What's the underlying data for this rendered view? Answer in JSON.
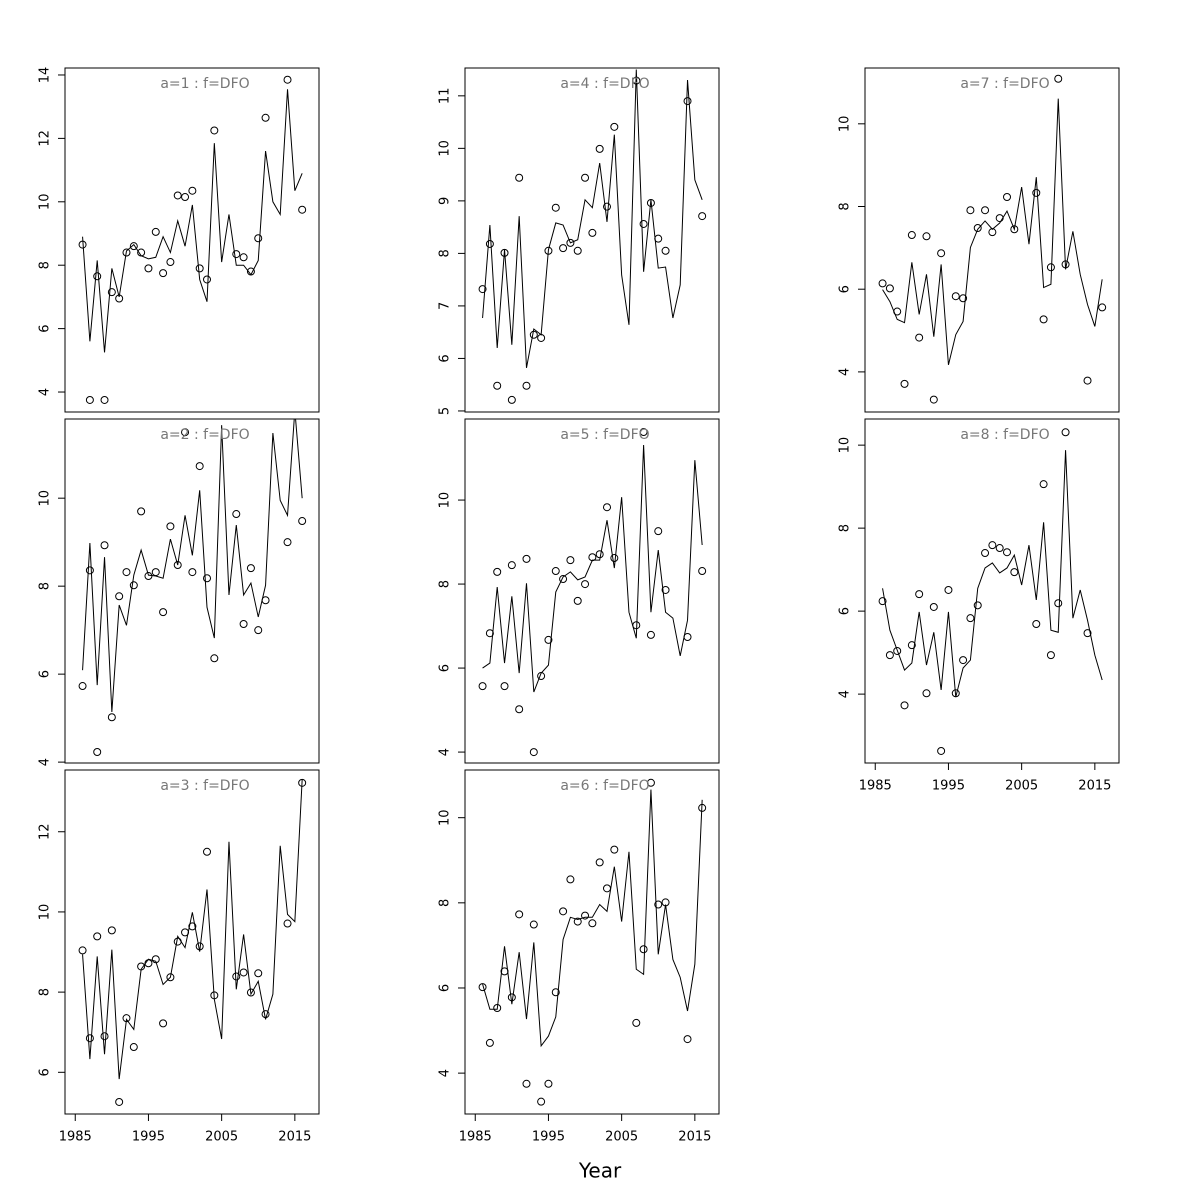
{
  "x_label": "Year",
  "chart_data": [
    {
      "type": "line",
      "title": "a=1 : f=DFO",
      "x": [
        1986,
        1987,
        1988,
        1989,
        1990,
        1991,
        1992,
        1993,
        1994,
        1995,
        1996,
        1997,
        1998,
        1999,
        2000,
        2001,
        2002,
        2003,
        2004,
        2005,
        2006,
        2007,
        2008,
        2009,
        2010,
        2011,
        2012,
        2013,
        2014,
        2015,
        2016
      ],
      "series": [
        {
          "style": "points",
          "color": "#000000",
          "values": [
            8.65,
            3.75,
            7.65,
            3.75,
            7.15,
            6.95,
            8.4,
            8.6,
            8.4,
            7.9,
            9.05,
            7.75,
            8.1,
            10.2,
            10.15,
            10.35,
            7.9,
            7.55,
            12.25,
            null,
            null,
            8.35,
            8.25,
            7.8,
            8.85,
            12.65,
            null,
            null,
            13.85,
            null,
            9.75
          ]
        },
        {
          "style": "line",
          "color": "#000000",
          "values": [
            8.9,
            5.6,
            8.15,
            5.25,
            7.9,
            7.0,
            8.45,
            8.65,
            8.3,
            8.2,
            8.25,
            8.9,
            8.4,
            9.4,
            8.6,
            9.9,
            7.55,
            6.85,
            11.85,
            8.1,
            9.6,
            8.0,
            8.0,
            7.7,
            8.15,
            11.6,
            10.0,
            9.6,
            13.55,
            10.35,
            10.9
          ]
        }
      ],
      "xlim": [
        1983.6,
        2018.3
      ],
      "ylim": [
        3.37,
        14.22
      ],
      "yticks": [
        4,
        6,
        8,
        10,
        12,
        14
      ]
    },
    {
      "type": "line",
      "title": "a=2 : f=DFO",
      "x": [
        1986,
        1987,
        1988,
        1989,
        1990,
        1991,
        1992,
        1993,
        1994,
        1995,
        1996,
        1997,
        1998,
        1999,
        2000,
        2001,
        2002,
        2003,
        2004,
        2005,
        2006,
        2007,
        2008,
        2009,
        2010,
        2011,
        2012,
        2013,
        2014,
        2015,
        2016
      ],
      "series": [
        {
          "style": "points",
          "color": "#000000",
          "values": [
            5.73,
            8.36,
            4.23,
            8.93,
            5.02,
            7.77,
            8.32,
            8.02,
            9.7,
            8.23,
            8.32,
            7.41,
            9.36,
            8.48,
            11.5,
            8.32,
            10.73,
            8.18,
            6.36,
            null,
            null,
            9.64,
            7.14,
            8.41,
            7.0,
            7.68,
            null,
            null,
            9.0,
            null,
            9.48
          ]
        },
        {
          "style": "line",
          "color": "#000000",
          "values": [
            6.09,
            8.98,
            5.75,
            8.66,
            5.14,
            7.57,
            7.11,
            8.25,
            8.82,
            8.25,
            8.23,
            8.18,
            9.07,
            8.48,
            9.61,
            8.7,
            10.18,
            7.52,
            6.82,
            11.66,
            7.8,
            9.39,
            7.8,
            8.07,
            7.3,
            8.02,
            11.48,
            9.95,
            9.61,
            12.0,
            10.0
          ]
        }
      ],
      "xlim": [
        1983.6,
        2018.3
      ],
      "ylim": [
        3.98,
        11.8
      ],
      "yticks": [
        4,
        6,
        8,
        10
      ]
    },
    {
      "type": "line",
      "title": "a=3 : f=DFO",
      "x": [
        1986,
        1987,
        1988,
        1989,
        1990,
        1991,
        1992,
        1993,
        1994,
        1995,
        1996,
        1997,
        1998,
        1999,
        2000,
        2001,
        2002,
        2003,
        2004,
        2005,
        2006,
        2007,
        2008,
        2009,
        2010,
        2011,
        2012,
        2013,
        2014,
        2015,
        2016
      ],
      "series": [
        {
          "style": "points",
          "color": "#000000",
          "values": [
            9.04,
            6.85,
            9.39,
            6.9,
            9.54,
            5.26,
            7.35,
            6.63,
            8.64,
            8.72,
            8.82,
            7.22,
            8.37,
            9.26,
            9.49,
            9.64,
            9.14,
            11.5,
            7.92,
            null,
            null,
            8.39,
            8.49,
            7.99,
            8.47,
            7.45,
            null,
            null,
            9.71,
            null,
            13.22
          ]
        },
        {
          "style": "line",
          "color": "#000000",
          "values": [
            8.94,
            6.33,
            8.89,
            6.45,
            9.06,
            5.83,
            7.32,
            7.07,
            8.57,
            8.82,
            8.77,
            8.19,
            8.37,
            9.39,
            9.11,
            9.99,
            9.01,
            10.56,
            7.82,
            6.83,
            11.75,
            8.07,
            9.44,
            7.95,
            8.27,
            7.32,
            7.95,
            11.65,
            9.94,
            9.76,
            13.3
          ]
        }
      ],
      "xlim": [
        1983.6,
        2018.3
      ],
      "ylim": [
        4.96,
        13.54
      ],
      "yticks": [
        6,
        8,
        10,
        12
      ],
      "xticks": [
        1985,
        1995,
        2005,
        2015
      ]
    },
    {
      "type": "line",
      "title": "a=4 : f=DFO",
      "x": [
        1986,
        1987,
        1988,
        1989,
        1990,
        1991,
        1992,
        1993,
        1994,
        1995,
        1996,
        1997,
        1998,
        1999,
        2000,
        2001,
        2002,
        2003,
        2004,
        2005,
        2006,
        2007,
        2008,
        2009,
        2010,
        2011,
        2012,
        2013,
        2014,
        2015,
        2016
      ],
      "series": [
        {
          "style": "points",
          "color": "#000000",
          "values": [
            7.32,
            8.18,
            5.48,
            8.01,
            5.21,
            9.44,
            5.48,
            6.45,
            6.39,
            8.05,
            8.87,
            8.1,
            8.2,
            8.05,
            9.44,
            8.39,
            9.99,
            8.89,
            10.41,
            null,
            null,
            11.29,
            8.56,
            8.96,
            8.28,
            8.05,
            null,
            null,
            10.9,
            null,
            8.71
          ]
        },
        {
          "style": "line",
          "color": "#000000",
          "values": [
            6.77,
            8.54,
            6.2,
            8.07,
            6.26,
            8.71,
            5.82,
            6.56,
            6.45,
            8.07,
            8.58,
            8.54,
            8.2,
            8.26,
            9.02,
            8.87,
            9.72,
            8.6,
            10.26,
            7.59,
            6.64,
            11.5,
            7.65,
            9.02,
            7.72,
            7.74,
            6.77,
            7.4,
            11.3,
            9.4,
            9.02
          ]
        }
      ],
      "xlim": [
        1983.6,
        2018.3
      ],
      "ylim": [
        4.98,
        11.53
      ],
      "yticks": [
        5,
        6,
        7,
        8,
        9,
        10,
        11
      ]
    },
    {
      "type": "line",
      "title": "a=5 : f=DFO",
      "x": [
        1986,
        1987,
        1988,
        1989,
        1990,
        1991,
        1992,
        1993,
        1994,
        1995,
        1996,
        1997,
        1998,
        1999,
        2000,
        2001,
        2002,
        2003,
        2004,
        2005,
        2006,
        2007,
        2008,
        2009,
        2010,
        2011,
        2012,
        2013,
        2014,
        2015,
        2016
      ],
      "series": [
        {
          "style": "points",
          "color": "#000000",
          "values": [
            5.57,
            6.83,
            8.29,
            5.57,
            8.45,
            5.02,
            8.6,
            4.0,
            5.81,
            6.67,
            8.31,
            8.12,
            8.57,
            7.6,
            8.0,
            8.64,
            8.71,
            9.83,
            8.62,
            null,
            null,
            7.02,
            11.62,
            6.79,
            9.26,
            7.86,
            null,
            null,
            6.74,
            null,
            8.31
          ]
        },
        {
          "style": "line",
          "color": "#000000",
          "values": [
            6.0,
            6.12,
            7.93,
            6.12,
            7.71,
            5.88,
            8.02,
            5.43,
            5.88,
            6.07,
            7.81,
            8.17,
            8.29,
            8.1,
            8.17,
            8.57,
            8.57,
            9.52,
            8.38,
            10.07,
            7.33,
            6.71,
            11.31,
            7.33,
            8.81,
            7.33,
            7.19,
            6.29,
            7.14,
            10.95,
            8.93
          ]
        }
      ],
      "xlim": [
        1983.6,
        2018.3
      ],
      "ylim": [
        3.74,
        11.93
      ],
      "yticks": [
        4,
        6,
        8,
        10
      ]
    },
    {
      "type": "line",
      "title": "a=6 : f=DFO",
      "x": [
        1986,
        1987,
        1988,
        1989,
        1990,
        1991,
        1992,
        1993,
        1994,
        1995,
        1996,
        1997,
        1998,
        1999,
        2000,
        2001,
        2002,
        2003,
        2004,
        2005,
        2006,
        2007,
        2008,
        2009,
        2010,
        2011,
        2012,
        2013,
        2014,
        2015,
        2016
      ],
      "series": [
        {
          "style": "points",
          "color": "#000000",
          "values": [
            6.02,
            4.71,
            5.53,
            6.39,
            5.78,
            7.73,
            3.75,
            7.49,
            3.33,
            3.75,
            5.9,
            7.8,
            8.55,
            7.56,
            7.7,
            7.52,
            8.95,
            8.34,
            9.25,
            null,
            null,
            5.18,
            6.91,
            10.82,
            7.96,
            8.01,
            null,
            null,
            4.8,
            null,
            10.23
          ]
        },
        {
          "style": "line",
          "color": "#000000",
          "values": [
            6.09,
            5.5,
            5.5,
            6.98,
            5.62,
            6.84,
            5.27,
            7.07,
            4.64,
            4.87,
            5.32,
            7.14,
            7.66,
            7.61,
            7.66,
            7.66,
            7.96,
            7.8,
            8.85,
            7.56,
            9.2,
            6.44,
            6.32,
            10.66,
            6.79,
            7.96,
            6.67,
            6.25,
            5.46,
            6.56,
            10.42
          ]
        }
      ],
      "xlim": [
        1983.6,
        2018.3
      ],
      "ylim": [
        3.04,
        11.12
      ],
      "yticks": [
        4,
        6,
        8,
        10
      ],
      "xticks": [
        1985,
        1995,
        2005,
        2015
      ]
    },
    {
      "type": "line",
      "title": "a=7 : f=DFO",
      "x": [
        1986,
        1987,
        1988,
        1989,
        1990,
        1991,
        1992,
        1993,
        1994,
        1995,
        1996,
        1997,
        1998,
        1999,
        2000,
        2001,
        2002,
        2003,
        2004,
        2005,
        2006,
        2007,
        2008,
        2009,
        2010,
        2011,
        2012,
        2013,
        2014,
        2015,
        2016
      ],
      "series": [
        {
          "style": "points",
          "color": "#000000",
          "values": [
            6.14,
            6.02,
            5.46,
            3.71,
            7.31,
            4.83,
            7.28,
            3.33,
            6.87,
            null,
            5.83,
            5.78,
            7.91,
            7.48,
            7.91,
            7.38,
            7.72,
            8.23,
            7.45,
            null,
            null,
            8.33,
            5.27,
            6.53,
            11.09,
            6.6,
            null,
            null,
            3.79,
            null,
            5.56
          ]
        },
        {
          "style": "line",
          "color": "#000000",
          "values": [
            5.99,
            5.7,
            5.27,
            5.19,
            6.65,
            5.39,
            6.36,
            4.85,
            6.6,
            4.17,
            4.9,
            5.22,
            7.01,
            7.45,
            7.65,
            7.45,
            7.6,
            7.89,
            7.45,
            8.47,
            7.09,
            8.71,
            6.04,
            6.12,
            10.61,
            6.48,
            7.4,
            6.36,
            5.63,
            5.1,
            6.24
          ]
        }
      ],
      "xlim": [
        1983.6,
        2018.3
      ],
      "ylim": [
        3.03,
        11.35
      ],
      "yticks": [
        4,
        6,
        8,
        10
      ]
    },
    {
      "type": "line",
      "title": "a=8 : f=DFO",
      "x": [
        1986,
        1987,
        1988,
        1989,
        1990,
        1991,
        1992,
        1993,
        1994,
        1995,
        1996,
        1997,
        1998,
        1999,
        2000,
        2001,
        2002,
        2003,
        2004,
        2005,
        2006,
        2007,
        2008,
        2009,
        2010,
        2011,
        2012,
        2013,
        2014,
        2015,
        2016
      ],
      "series": [
        {
          "style": "points",
          "color": "#000000",
          "values": [
            6.24,
            4.94,
            5.04,
            3.73,
            5.18,
            6.41,
            4.02,
            6.1,
            2.63,
            6.51,
            4.02,
            4.82,
            5.83,
            6.14,
            7.4,
            7.59,
            7.52,
            7.42,
            6.94,
            null,
            null,
            5.69,
            9.06,
            4.94,
            6.19,
            10.31,
            null,
            null,
            5.47,
            null,
            null
          ]
        },
        {
          "style": "line",
          "color": "#000000",
          "values": [
            6.55,
            5.54,
            5.06,
            4.58,
            4.75,
            5.98,
            4.7,
            5.49,
            4.1,
            5.98,
            3.93,
            4.63,
            4.82,
            6.55,
            7.04,
            7.16,
            6.92,
            7.04,
            7.35,
            6.63,
            7.59,
            6.27,
            8.14,
            5.54,
            5.49,
            9.88,
            5.83,
            6.51,
            5.78,
            4.94,
            4.34
          ]
        }
      ],
      "xlim": [
        1983.6,
        2018.3
      ],
      "ylim": [
        2.34,
        10.63
      ],
      "yticks": [
        4,
        6,
        8,
        10
      ],
      "xticks": [
        1985,
        1995,
        2005,
        2015
      ]
    }
  ]
}
